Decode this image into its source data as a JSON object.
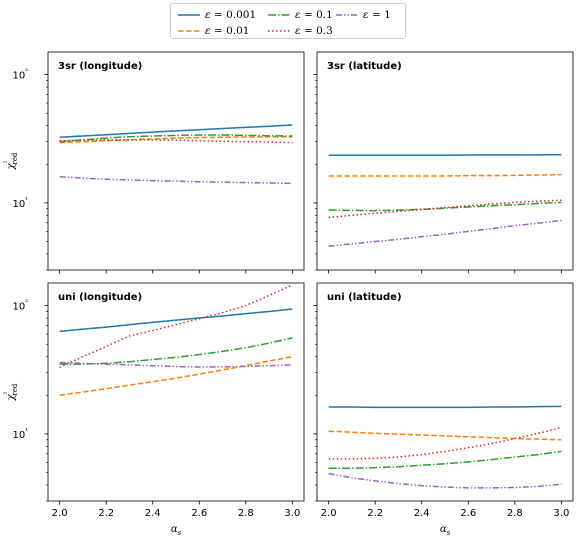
{
  "chart_data": [
    {
      "type": "line",
      "title": "3sr (longitude)",
      "ylabel": "χ²red",
      "xlabel": "",
      "yscale": "log",
      "ylim": [
        3,
        150
      ],
      "xlim": [
        1.95,
        3.05
      ],
      "yticks": [
        {
          "value": 10,
          "label": "10¹"
        },
        {
          "value": 100,
          "label": "10²"
        }
      ],
      "xticks": [],
      "x": [
        2.0,
        2.1,
        2.2,
        2.3,
        2.4,
        2.5,
        2.6,
        2.7,
        2.8,
        2.9,
        3.0
      ],
      "series": [
        {
          "name": "ε = 0.001",
          "values": [
            32.5,
            33.2,
            34.0,
            34.8,
            35.6,
            36.4,
            37.2,
            38.0,
            38.8,
            39.6,
            40.5
          ]
        },
        {
          "name": "ε = 0.01",
          "values": [
            29.5,
            30.0,
            30.5,
            31.0,
            31.5,
            32.0,
            32.3,
            32.5,
            32.6,
            32.7,
            32.8
          ]
        },
        {
          "name": "ε = 0.1",
          "values": [
            30.0,
            31.0,
            32.0,
            32.8,
            33.2,
            33.6,
            33.8,
            33.8,
            33.6,
            33.4,
            33.2
          ]
        },
        {
          "name": "ε = 0.3",
          "values": [
            30.5,
            30.8,
            31.0,
            31.0,
            31.0,
            30.8,
            30.5,
            30.2,
            30.0,
            29.8,
            29.5
          ]
        },
        {
          "name": "ε = 1",
          "values": [
            16.0,
            15.6,
            15.3,
            15.1,
            14.9,
            14.8,
            14.6,
            14.5,
            14.4,
            14.3,
            14.2
          ]
        }
      ]
    },
    {
      "type": "line",
      "title": "3sr (latitude)",
      "ylabel": "",
      "xlabel": "",
      "yscale": "log",
      "ylim": [
        3,
        150
      ],
      "xlim": [
        1.95,
        3.05
      ],
      "yticks": [],
      "xticks": [],
      "x": [
        2.0,
        2.1,
        2.2,
        2.3,
        2.4,
        2.5,
        2.6,
        2.7,
        2.8,
        2.9,
        3.0
      ],
      "series": [
        {
          "name": "ε = 0.001",
          "values": [
            23.5,
            23.5,
            23.5,
            23.5,
            23.5,
            23.5,
            23.6,
            23.6,
            23.6,
            23.7,
            23.8
          ]
        },
        {
          "name": "ε = 0.01",
          "values": [
            16.2,
            16.2,
            16.2,
            16.2,
            16.2,
            16.2,
            16.3,
            16.3,
            16.4,
            16.5,
            16.6
          ]
        },
        {
          "name": "ε = 0.1",
          "values": [
            8.8,
            8.75,
            8.7,
            8.8,
            8.9,
            9.1,
            9.3,
            9.5,
            9.7,
            9.9,
            10.1
          ]
        },
        {
          "name": "ε = 0.3",
          "values": [
            7.7,
            8.0,
            8.3,
            8.6,
            8.9,
            9.2,
            9.5,
            9.8,
            10.1,
            10.3,
            10.5
          ]
        },
        {
          "name": "ε = 1",
          "values": [
            4.6,
            4.8,
            5.0,
            5.2,
            5.45,
            5.7,
            6.0,
            6.3,
            6.65,
            6.95,
            7.3
          ]
        }
      ]
    },
    {
      "type": "line",
      "title": "uni (longitude)",
      "ylabel": "χ²red",
      "xlabel": "αs",
      "yscale": "log",
      "ylim": [
        3,
        150
      ],
      "xlim": [
        1.95,
        3.05
      ],
      "yticks": [
        {
          "value": 10,
          "label": "10¹"
        },
        {
          "value": 100,
          "label": "10²"
        }
      ],
      "xticks": [
        "2.0",
        "2.2",
        "2.4",
        "2.6",
        "2.8",
        "3.0"
      ],
      "x": [
        2.0,
        2.1,
        2.2,
        2.3,
        2.4,
        2.5,
        2.6,
        2.7,
        2.8,
        2.9,
        3.0
      ],
      "series": [
        {
          "name": "ε = 0.001",
          "values": [
            63,
            65.5,
            68,
            71,
            74,
            77,
            80,
            83,
            86.5,
            90,
            94
          ]
        },
        {
          "name": "ε = 0.01",
          "values": [
            20,
            21.2,
            22.5,
            24,
            25.5,
            27.2,
            29.2,
            31.5,
            34,
            37,
            40
          ]
        },
        {
          "name": "ε = 0.1",
          "values": [
            35,
            35,
            35.5,
            36.5,
            38,
            39.5,
            41.5,
            44,
            47,
            51,
            56
          ]
        },
        {
          "name": "ε = 0.3",
          "values": [
            33,
            40,
            48,
            58,
            64,
            71,
            79,
            88,
            100,
            120,
            145
          ]
        },
        {
          "name": "ε = 1",
          "values": [
            36,
            35.5,
            35,
            34.5,
            34,
            33.5,
            33.2,
            33.3,
            33.6,
            34.0,
            34.5
          ]
        }
      ]
    },
    {
      "type": "line",
      "title": "uni (latitude)",
      "ylabel": "",
      "xlabel": "αs",
      "yscale": "log",
      "ylim": [
        3,
        150
      ],
      "xlim": [
        1.95,
        3.05
      ],
      "yticks": [],
      "xticks": [
        "2.0",
        "2.2",
        "2.4",
        "2.6",
        "2.8",
        "3.0"
      ],
      "x": [
        2.0,
        2.1,
        2.2,
        2.3,
        2.4,
        2.5,
        2.6,
        2.7,
        2.8,
        2.9,
        3.0
      ],
      "series": [
        {
          "name": "ε = 0.001",
          "values": [
            16.2,
            16.2,
            16.1,
            16.1,
            16.1,
            16.1,
            16.1,
            16.2,
            16.2,
            16.3,
            16.4
          ]
        },
        {
          "name": "ε = 0.01",
          "values": [
            10.5,
            10.3,
            10.1,
            9.95,
            9.8,
            9.65,
            9.5,
            9.35,
            9.2,
            9.1,
            9.0
          ]
        },
        {
          "name": "ε = 0.1",
          "values": [
            5.4,
            5.4,
            5.45,
            5.55,
            5.7,
            5.85,
            6.05,
            6.3,
            6.6,
            6.9,
            7.3
          ]
        },
        {
          "name": "ε = 0.3",
          "values": [
            6.4,
            6.4,
            6.45,
            6.6,
            6.9,
            7.3,
            7.8,
            8.4,
            9.2,
            10.1,
            11.2
          ]
        },
        {
          "name": "ε = 1",
          "values": [
            4.9,
            4.55,
            4.3,
            4.1,
            3.95,
            3.85,
            3.8,
            3.8,
            3.82,
            3.9,
            4.05
          ]
        }
      ]
    }
  ],
  "legend": {
    "placement": "top-center",
    "entries": [
      {
        "prefix": "ε",
        "value": " = 0.001",
        "color": "#1f77b4",
        "dash": "solid"
      },
      {
        "prefix": "ε",
        "value": " = 0.01",
        "color": "#ff7f0e",
        "dash": "dashed"
      },
      {
        "prefix": "ε",
        "value": " = 0.1",
        "color": "#2ca02c",
        "dash": "dashdot"
      },
      {
        "prefix": "ε",
        "value": " = 0.3",
        "color": "#d62728",
        "dash": "dotted"
      },
      {
        "prefix": "ε",
        "value": " = 1",
        "color": "#9467bd",
        "dash": "dashdotdot"
      }
    ]
  }
}
